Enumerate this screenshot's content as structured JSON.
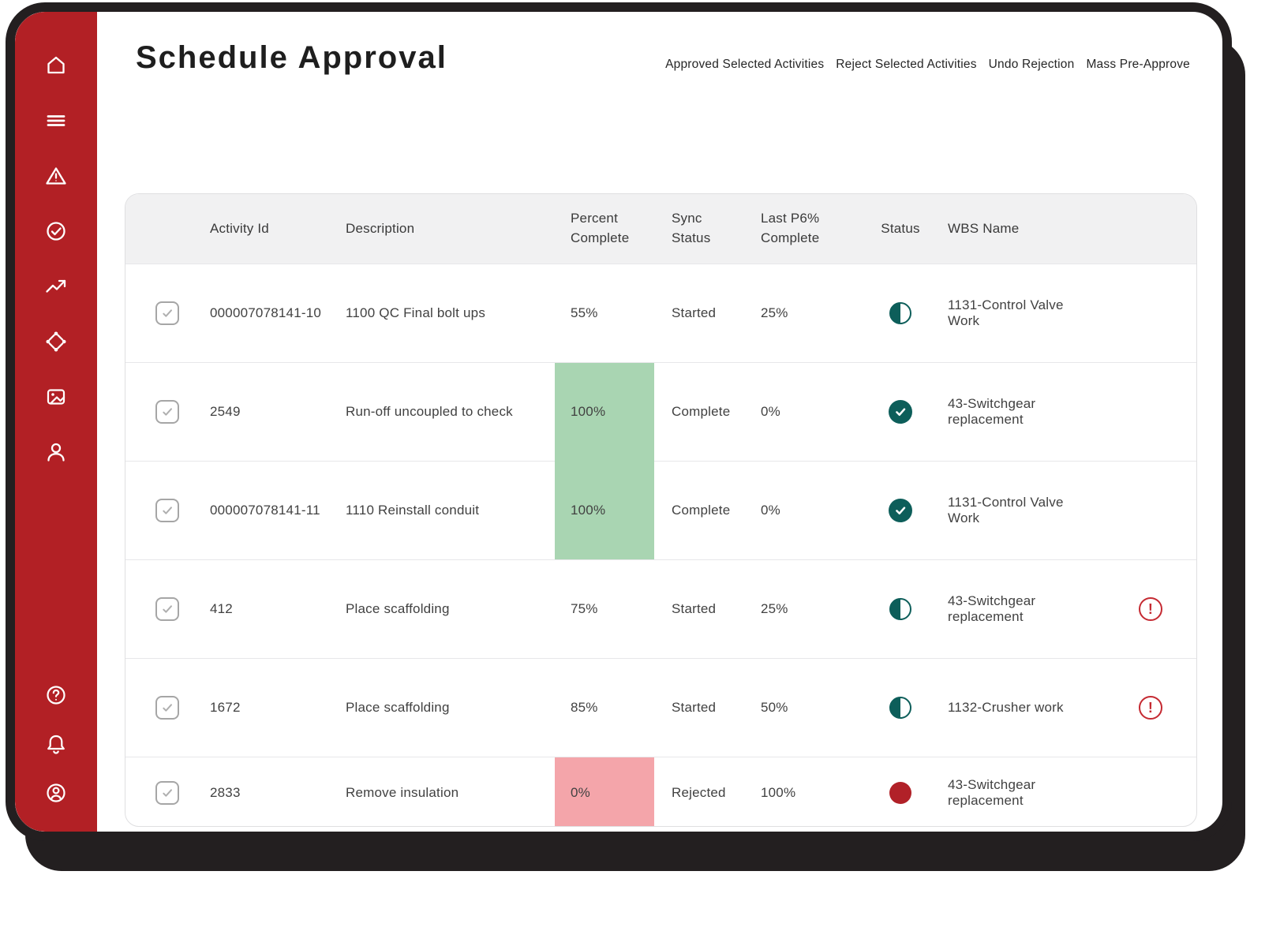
{
  "header": {
    "title": "Schedule Approval",
    "actions": [
      "Approved Selected Activities",
      "Reject Selected Activities",
      "Undo Rejection",
      "Mass Pre-Approve"
    ]
  },
  "sidebar": {
    "top_icons": [
      "home-icon",
      "menu-icon",
      "warning-icon",
      "approvals-check-icon",
      "trending-up-icon",
      "sync-network-icon",
      "media-image-icon",
      "user-icon"
    ],
    "bottom_icons": [
      "help-icon",
      "notifications-bell-icon",
      "account-icon"
    ]
  },
  "table": {
    "columns": [
      "Activity Id",
      "Description",
      "Percent Complete",
      "Sync Status",
      "Last P6% Complete",
      "Status",
      "WBS Name"
    ],
    "rows": [
      {
        "selected": true,
        "activity_id": "000007078141-10",
        "description": "1100 QC Final bolt ups",
        "percent_complete": "55%",
        "percent_highlight": "none",
        "sync_status": "Started",
        "last_p6_complete": "25%",
        "status": "in-progress",
        "wbs_name": "1131-Control Valve Work",
        "alert": false
      },
      {
        "selected": true,
        "activity_id": "2549",
        "description": "Run-off uncoupled to check",
        "percent_complete": "100%",
        "percent_highlight": "green",
        "sync_status": "Complete",
        "last_p6_complete": "0%",
        "status": "complete",
        "wbs_name": "43-Switchgear replacement",
        "alert": false
      },
      {
        "selected": true,
        "activity_id": "000007078141-11",
        "description": "1110 Reinstall conduit",
        "percent_complete": "100%",
        "percent_highlight": "green",
        "sync_status": "Complete",
        "last_p6_complete": "0%",
        "status": "complete",
        "wbs_name": "1131-Control Valve Work",
        "alert": false
      },
      {
        "selected": true,
        "activity_id": "412",
        "description": "Place scaffolding",
        "percent_complete": "75%",
        "percent_highlight": "none",
        "sync_status": "Started",
        "last_p6_complete": "25%",
        "status": "in-progress",
        "wbs_name": "43-Switchgear replacement",
        "alert": true
      },
      {
        "selected": true,
        "activity_id": "1672",
        "description": "Place scaffolding",
        "percent_complete": "85%",
        "percent_highlight": "none",
        "sync_status": "Started",
        "last_p6_complete": "50%",
        "status": "in-progress",
        "wbs_name": "1132-Crusher work",
        "alert": true
      },
      {
        "selected": true,
        "activity_id": "2833",
        "description": "Remove insulation",
        "percent_complete": "0%",
        "percent_highlight": "red",
        "sync_status": "Rejected",
        "last_p6_complete": "100%",
        "status": "rejected",
        "wbs_name": "43-Switchgear replacement",
        "alert": false
      }
    ]
  },
  "colors": {
    "sidebar_red": "#B22025",
    "teal_status": "#0D5E5A",
    "green_highlight": "#A9D5B2",
    "red_highlight": "#F4A5AA",
    "rejected_red": "#B12128",
    "alert_red": "#C52A32",
    "frame_black": "#231F20",
    "header_row_bg": "#F1F1F2"
  }
}
